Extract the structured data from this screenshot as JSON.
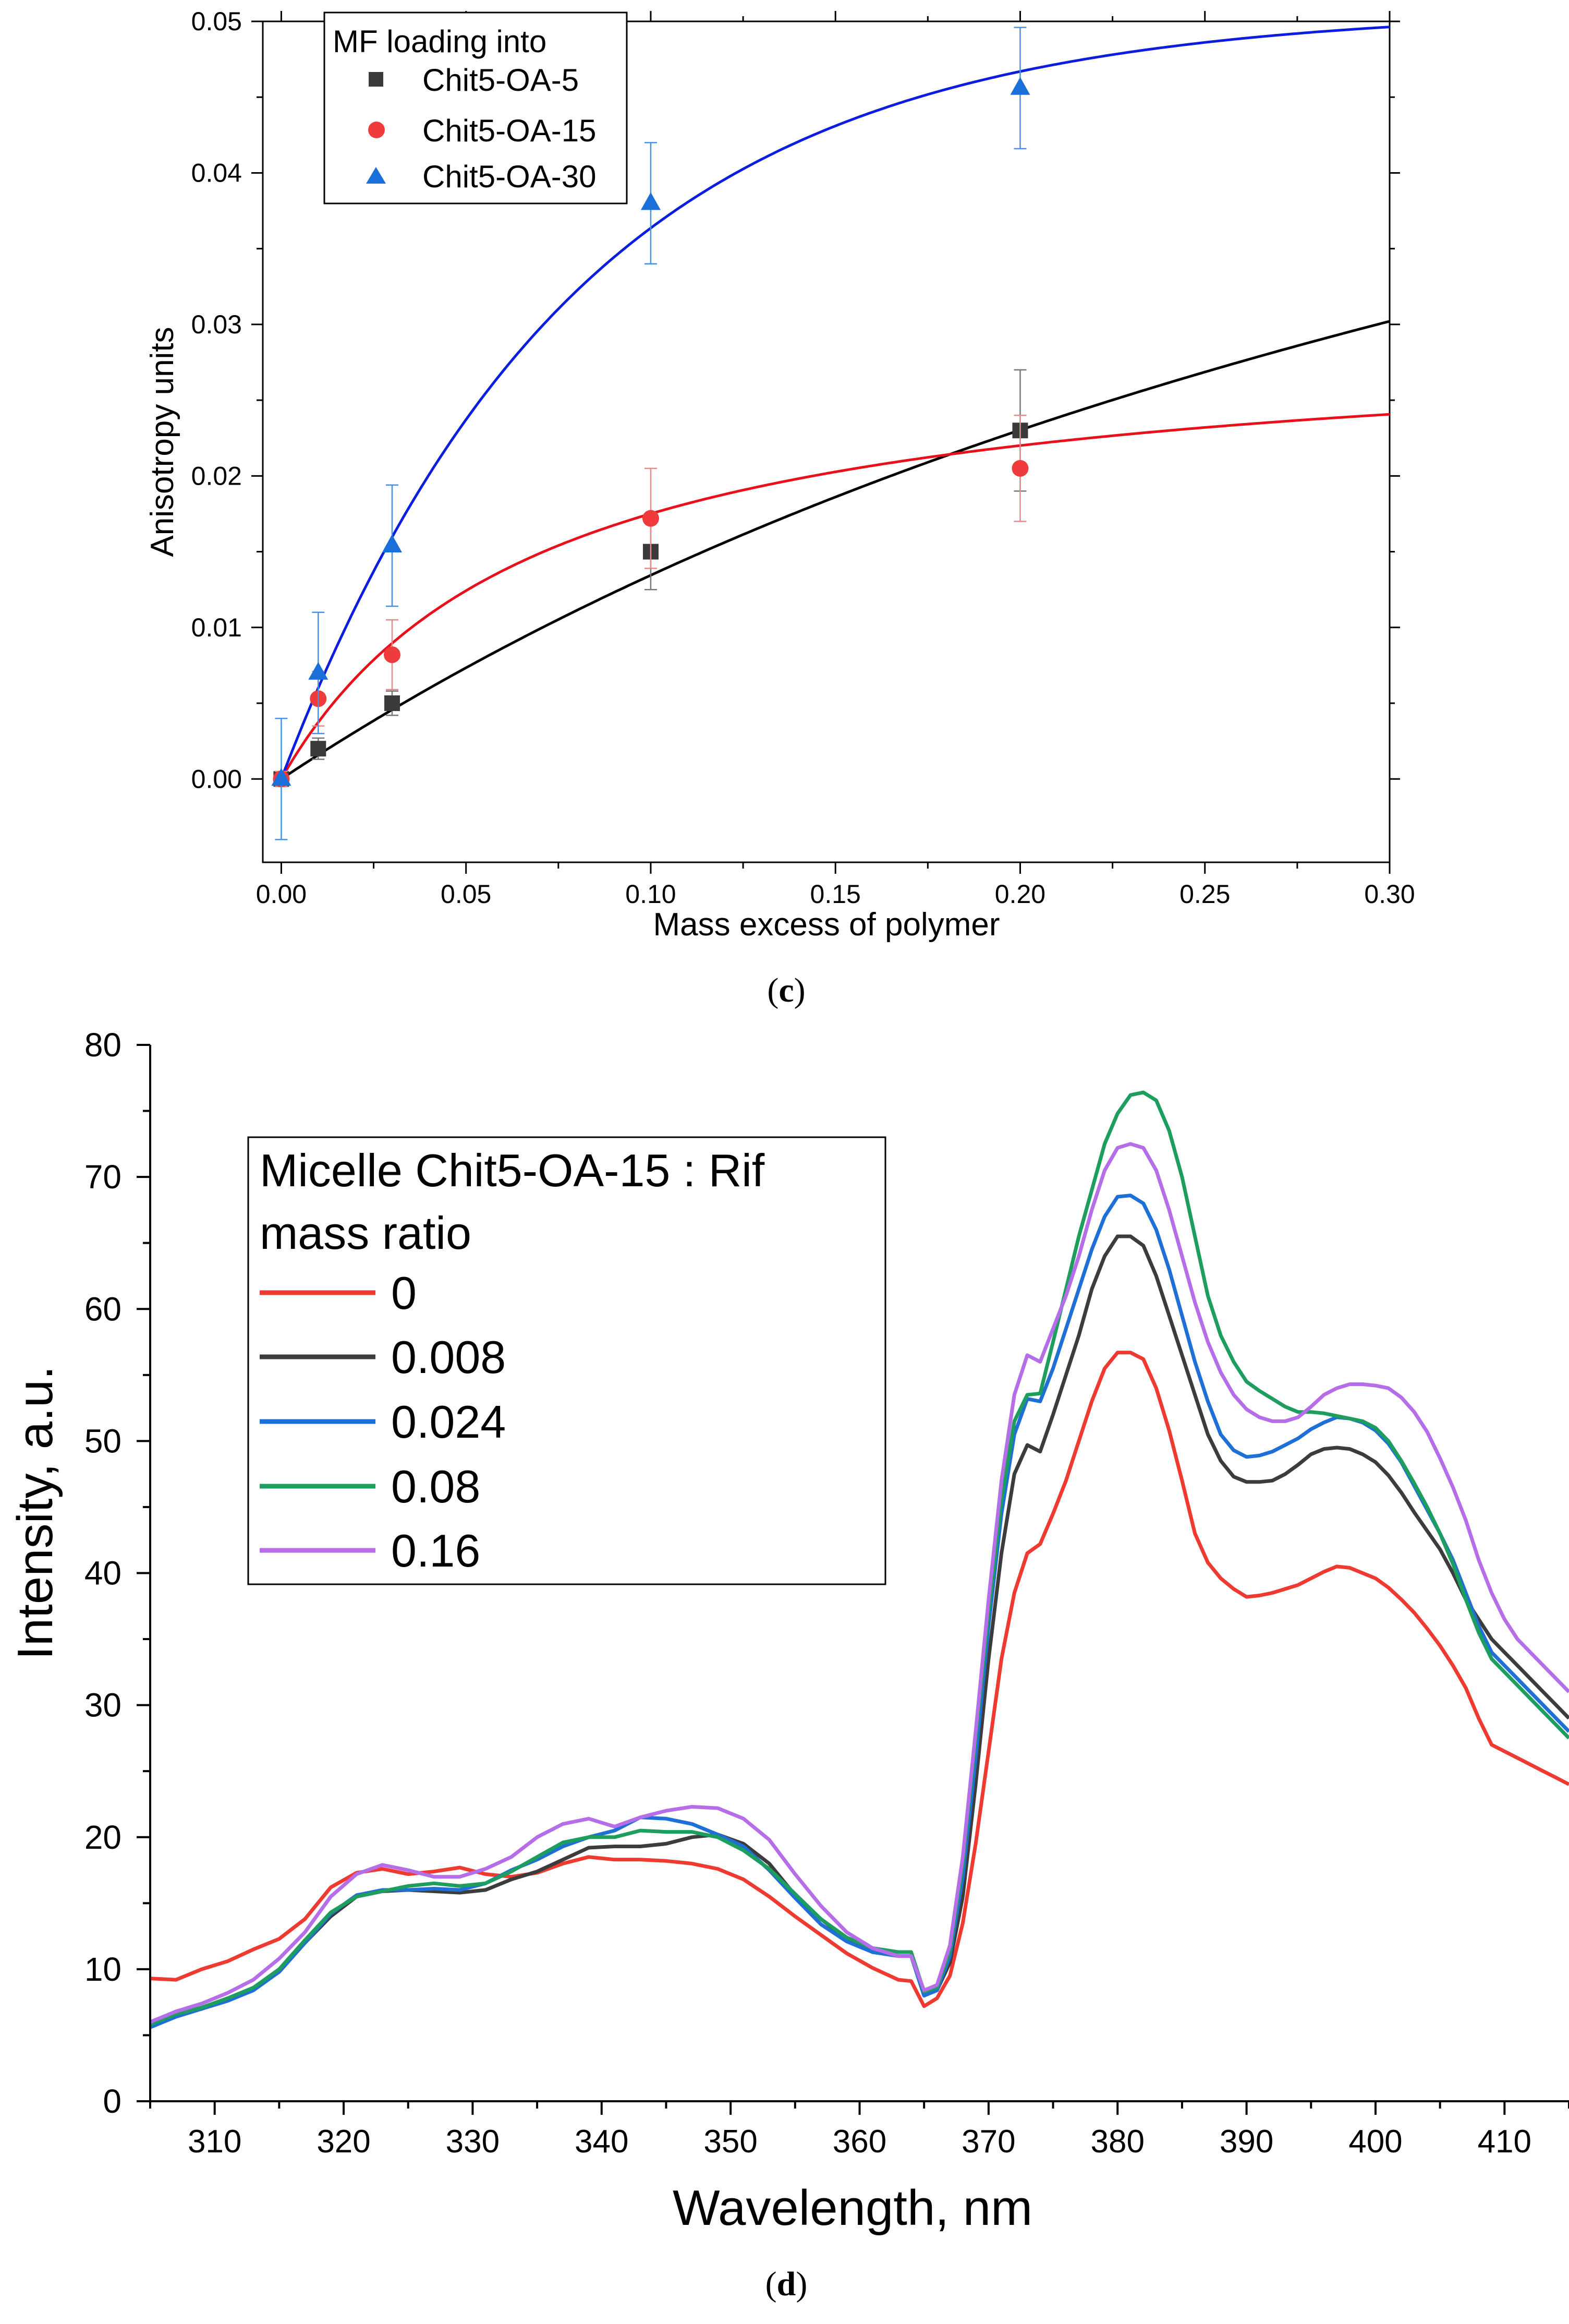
{
  "chart_data": [
    {
      "type": "scatter",
      "panel_label": "(c)",
      "panel_letter": "c",
      "xlabel": "Mass excess of polymer",
      "ylabel": "Anisotropy units",
      "xlim": [
        -0.005,
        0.3
      ],
      "ylim": [
        -0.0055,
        0.05
      ],
      "x_ticks": [
        0.0,
        0.05,
        0.1,
        0.15,
        0.2,
        0.25,
        0.3
      ],
      "x_tick_labels": [
        "0.00",
        "0.05",
        "0.10",
        "0.15",
        "0.20",
        "0.25",
        "0.30"
      ],
      "y_ticks": [
        0.0,
        0.01,
        0.02,
        0.03,
        0.04,
        0.05
      ],
      "y_tick_labels": [
        "0.00",
        "0.01",
        "0.02",
        "0.03",
        "0.04",
        "0.05"
      ],
      "legend_title": "MF loading into",
      "legend_position": "top-left",
      "series": [
        {
          "name": "Chit5-OA-5",
          "color": "#3a3a3a",
          "fit_color": "#000000",
          "marker": "square",
          "x": [
            0,
            0.01,
            0.03,
            0.1,
            0.2
          ],
          "y": [
            0,
            0.002,
            0.005,
            0.015,
            0.023
          ],
          "err": [
            0.0005,
            0.0007,
            0.0008,
            0.0025,
            0.004
          ],
          "fit_bmax": 0.0802,
          "fit_k": 0.4965
        },
        {
          "name": "Chit5-OA-15",
          "color": "#ef3b3b",
          "fit_color": "#e8101a",
          "marker": "circle",
          "x": [
            0,
            0.01,
            0.03,
            0.1,
            0.2
          ],
          "y": [
            0,
            0.0053,
            0.0082,
            0.0172,
            0.0205
          ],
          "err": [
            0.0005,
            0.0018,
            0.0023,
            0.0033,
            0.0035
          ],
          "fit_bmax": 0.02962,
          "fit_k": 0.0692
        },
        {
          "name": "Chit5-OA-30",
          "color": "#1a6fd8",
          "fit_color": "#0b1ee0",
          "marker": "triangle",
          "x": [
            0,
            0.01,
            0.03,
            0.1,
            0.2
          ],
          "y": [
            0,
            0.007,
            0.0154,
            0.038,
            0.0456
          ],
          "err": [
            0.004,
            0.004,
            0.004,
            0.004,
            0.004
          ],
          "fit_a": 0.0508,
          "fit_t": 0.0795
        }
      ]
    },
    {
      "type": "line",
      "panel_label": "(d)",
      "panel_letter": "d",
      "xlabel": "Wavelength, nm",
      "ylabel": "Intensity, a.u.",
      "xlim": [
        305,
        415
      ],
      "ylim": [
        0,
        80
      ],
      "x_ticks": [
        310,
        320,
        330,
        340,
        350,
        360,
        370,
        380,
        390,
        400,
        410
      ],
      "x_tick_labels": [
        "310",
        "320",
        "330",
        "340",
        "350",
        "360",
        "370",
        "380",
        "390",
        "400",
        "410"
      ],
      "y_ticks": [
        0,
        10,
        20,
        30,
        40,
        50,
        60,
        70,
        80
      ],
      "y_tick_labels": [
        "0",
        "10",
        "20",
        "30",
        "40",
        "50",
        "60",
        "70",
        "80"
      ],
      "legend_title_line1": "Micelle Chit5-OA-15 : Rif",
      "legend_title_line2": "mass ratio",
      "legend_position": "top-left",
      "x": [
        305,
        307,
        309,
        311,
        313,
        315,
        317,
        319,
        321,
        323,
        325,
        327,
        329,
        331,
        333,
        335,
        337,
        339,
        341,
        343,
        345,
        347,
        349,
        351,
        353,
        355,
        357,
        359,
        361,
        363,
        364,
        365,
        366,
        367,
        368,
        369,
        370,
        371,
        372,
        373,
        374,
        375,
        376,
        377,
        378,
        379,
        380,
        381,
        382,
        383,
        384,
        385,
        386,
        387,
        388,
        389,
        390,
        391,
        392,
        393,
        394,
        395,
        396,
        397,
        398,
        399,
        400,
        401,
        402,
        403,
        404,
        405,
        406,
        407,
        408,
        409,
        410,
        411,
        412,
        413,
        414,
        415
      ],
      "series": [
        {
          "name": "0",
          "color": "#ee3a30",
          "y": [
            9.3,
            9.2,
            10.0,
            10.6,
            11.5,
            12.3,
            13.8,
            16.2,
            17.3,
            17.6,
            17.2,
            17.4,
            17.7,
            17.2,
            17.0,
            17.3,
            18.0,
            18.5,
            18.3,
            18.3,
            18.2,
            18.0,
            17.6,
            16.8,
            15.5,
            14.0,
            12.6,
            11.2,
            10.1,
            9.2,
            9.1,
            7.2,
            7.8,
            9.5,
            13.5,
            19.5,
            26.5,
            33.5,
            38.5,
            41.5,
            42.2,
            44.5,
            47.0,
            50.0,
            53.0,
            55.5,
            56.7,
            56.7,
            56.2,
            54.0,
            50.8,
            47.0,
            43.0,
            40.8,
            39.6,
            38.8,
            38.2,
            38.3,
            38.5,
            38.8,
            39.1,
            39.6,
            40.1,
            40.5,
            40.4,
            40.0,
            39.6,
            38.9,
            38.0,
            37.0,
            35.8,
            34.5,
            33.0,
            31.3,
            29.0,
            27.0,
            26.5,
            26.0,
            25.5,
            25.0,
            24.5,
            24.0
          ]
        },
        {
          "name": "0.008",
          "color": "#3c3c3c",
          "y": [
            5.8,
            6.5,
            7.0,
            7.7,
            8.5,
            9.8,
            12.0,
            14.0,
            15.5,
            15.9,
            16.0,
            15.9,
            15.8,
            16.0,
            16.8,
            17.4,
            18.3,
            19.2,
            19.3,
            19.3,
            19.5,
            20.0,
            20.2,
            19.5,
            18.0,
            15.6,
            13.8,
            12.3,
            11.3,
            11.0,
            11.0,
            8.0,
            8.4,
            10.5,
            15.5,
            24.0,
            33.5,
            41.5,
            47.5,
            49.7,
            49.2,
            52.0,
            55.0,
            58.0,
            61.5,
            64.0,
            65.5,
            65.5,
            64.8,
            62.5,
            59.5,
            56.5,
            53.5,
            50.5,
            48.5,
            47.3,
            46.9,
            46.9,
            47.0,
            47.5,
            48.2,
            49.0,
            49.4,
            49.5,
            49.4,
            49.0,
            48.4,
            47.4,
            46.1,
            44.6,
            43.2,
            41.8,
            40.0,
            38.0,
            36.5,
            35.0,
            34.0,
            33.0,
            32.0,
            31.0,
            30.0,
            29.0
          ]
        },
        {
          "name": "0.024",
          "color": "#1e6fd6",
          "y": [
            5.6,
            6.4,
            7.0,
            7.6,
            8.4,
            9.8,
            12.0,
            14.2,
            15.6,
            16.0,
            16.0,
            16.1,
            16.0,
            16.5,
            17.5,
            18.3,
            19.3,
            20.0,
            20.5,
            21.5,
            21.4,
            21.0,
            20.2,
            19.3,
            17.5,
            15.4,
            13.4,
            12.1,
            11.3,
            11.0,
            11.0,
            8.0,
            8.4,
            11.0,
            17.0,
            26.0,
            36.0,
            44.5,
            50.5,
            53.2,
            53.0,
            55.5,
            58.5,
            61.5,
            64.5,
            67.0,
            68.5,
            68.6,
            68.0,
            66.0,
            63.0,
            59.5,
            56.0,
            53.0,
            50.5,
            49.3,
            48.8,
            48.9,
            49.2,
            49.7,
            50.2,
            50.9,
            51.4,
            51.8,
            51.7,
            51.4,
            50.8,
            49.8,
            48.4,
            46.6,
            44.8,
            43.0,
            41.0,
            38.5,
            36.0,
            34.0,
            33.0,
            32.0,
            31.0,
            30.0,
            29.0,
            28.0
          ]
        },
        {
          "name": "0.08",
          "color": "#1d9e5e",
          "y": [
            5.8,
            6.6,
            7.1,
            7.8,
            8.6,
            10.0,
            12.2,
            14.3,
            15.5,
            15.9,
            16.3,
            16.5,
            16.3,
            16.5,
            17.4,
            18.5,
            19.6,
            20.0,
            20.0,
            20.5,
            20.4,
            20.4,
            20.0,
            19.0,
            17.6,
            15.7,
            13.8,
            12.4,
            11.6,
            11.3,
            11.3,
            8.3,
            8.6,
            11.4,
            18.0,
            27.5,
            37.0,
            45.5,
            51.5,
            53.5,
            53.6,
            57.5,
            61.5,
            65.5,
            69.0,
            72.5,
            74.8,
            76.2,
            76.4,
            75.8,
            73.5,
            70.0,
            65.5,
            61.0,
            58.0,
            56.0,
            54.5,
            53.8,
            53.2,
            52.6,
            52.2,
            52.2,
            52.1,
            51.9,
            51.7,
            51.5,
            51.0,
            50.0,
            48.5,
            46.8,
            45.0,
            43.0,
            40.7,
            38.0,
            35.5,
            33.5,
            32.5,
            31.5,
            30.5,
            29.5,
            28.5,
            27.5
          ]
        },
        {
          "name": "0.16",
          "color": "#b66ee8",
          "y": [
            6.0,
            6.8,
            7.4,
            8.2,
            9.2,
            10.8,
            12.8,
            15.5,
            17.2,
            17.9,
            17.5,
            17.0,
            17.0,
            17.6,
            18.5,
            20.0,
            21.0,
            21.4,
            20.8,
            21.5,
            22.0,
            22.3,
            22.2,
            21.4,
            19.8,
            17.2,
            14.8,
            12.8,
            11.6,
            11.0,
            11.0,
            8.4,
            8.8,
            11.8,
            18.5,
            28.0,
            38.0,
            47.0,
            53.5,
            56.5,
            56.0,
            58.5,
            61.0,
            64.0,
            67.5,
            70.5,
            72.2,
            72.5,
            72.2,
            70.5,
            67.5,
            64.0,
            60.5,
            57.5,
            55.2,
            53.5,
            52.4,
            51.8,
            51.5,
            51.5,
            51.8,
            52.6,
            53.5,
            54.0,
            54.3,
            54.3,
            54.2,
            54.0,
            53.3,
            52.2,
            50.7,
            48.7,
            46.5,
            44.0,
            41.0,
            38.5,
            36.5,
            35.0,
            34.0,
            33.0,
            32.0,
            31.0
          ]
        }
      ]
    }
  ]
}
